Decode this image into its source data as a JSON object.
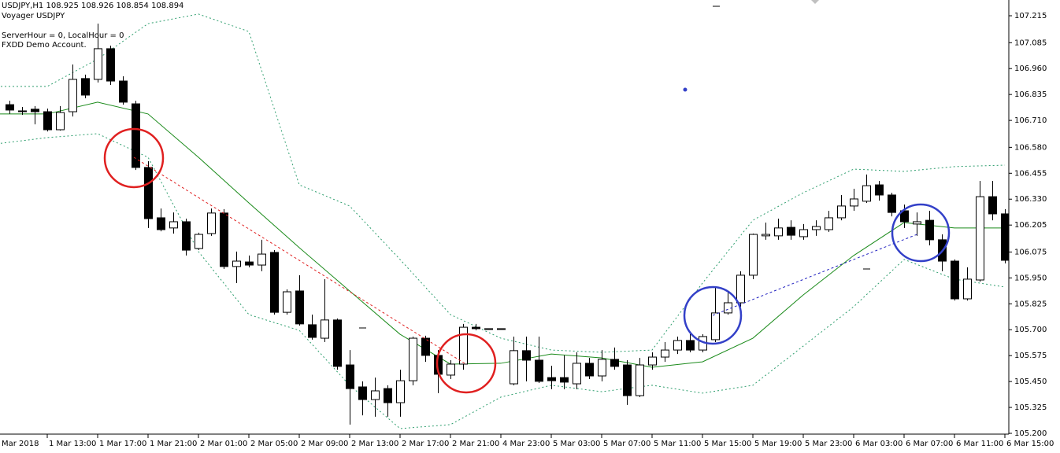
{
  "chart_data": {
    "type": "candlestick",
    "annotations": [
      "USDJPY,H1  108.925 108.926 108.854 108.894",
      "Voyager USDJPY",
      "ServerHour = 0, LocalHour = 0",
      "FXDD Demo Account."
    ],
    "categories": [
      "Mar 2018",
      null,
      null,
      null,
      "1 Mar 13:00",
      null,
      null,
      null,
      "1 Mar 17:00",
      null,
      null,
      null,
      "1 Mar 21:00",
      null,
      null,
      null,
      "2 Mar 01:00",
      null,
      null,
      null,
      "2 Mar 05:00",
      null,
      null,
      null,
      "2 Mar 09:00",
      null,
      null,
      null,
      "2 Mar 13:00",
      null,
      null,
      null,
      "2 Mar 17:00",
      null,
      null,
      null,
      "2 Mar 21:00",
      null,
      null,
      null,
      "4 Mar 23:00",
      null,
      null,
      null,
      "5 Mar 03:00",
      null,
      null,
      null,
      "5 Mar 07:00",
      null,
      null,
      null,
      "5 Mar 11:00",
      null,
      null,
      null,
      "5 Mar 15:00",
      null,
      null,
      null,
      "5 Mar 19:00",
      null,
      null,
      null,
      "5 Mar 23:00",
      null,
      null,
      null,
      "6 Mar 03:00",
      null,
      null,
      null,
      "6 Mar 07:00",
      null,
      null,
      null,
      "6 Mar 11:00",
      null,
      null,
      null,
      "6 Mar 15:00"
    ],
    "open": [
      null,
      106.786,
      106.756,
      106.764,
      106.752,
      106.665,
      106.752,
      106.912,
      106.908,
      107.056,
      106.9,
      106.79,
      106.483,
      106.24,
      106.191,
      106.221,
      106.092,
      106.164,
      106.263,
      106.005,
      106.027,
      106.012,
      106.073,
      105.784,
      105.887,
      105.724,
      105.659,
      105.747,
      105.53,
      105.424,
      105.363,
      105.416,
      105.348,
      105.454,
      105.659,
      105.576,
      105.481,
      105.534,
      105.712,
      105.705,
      105.705,
      105.439,
      105.599,
      105.553,
      105.469,
      105.469,
      105.439,
      105.538,
      105.477,
      105.557,
      105.53,
      105.382,
      105.53,
      105.568,
      105.602,
      105.648,
      105.602,
      105.652,
      105.781,
      105.83,
      105.963,
      106.153,
      106.153,
      106.194,
      106.149,
      106.183,
      106.183,
      106.24,
      106.297,
      106.32,
      106.399,
      106.35,
      106.274,
      106.21,
      106.228,
      106.134,
      106.031,
      105.849,
      105.94,
      106.342,
      106.259
    ],
    "high": [
      null,
      106.805,
      106.775,
      106.779,
      106.767,
      106.779,
      106.98,
      106.931,
      107.177,
      107.071,
      106.923,
      106.805,
      106.513,
      106.285,
      106.266,
      106.236,
      106.168,
      106.285,
      106.282,
      106.077,
      106.058,
      106.134,
      106.084,
      105.895,
      105.963,
      105.773,
      105.944,
      105.754,
      105.602,
      105.451,
      105.469,
      105.432,
      105.507,
      105.667,
      105.671,
      105.602,
      105.553,
      105.728,
      105.728,
      105.705,
      105.705,
      105.667,
      105.667,
      105.667,
      105.526,
      105.576,
      105.591,
      105.564,
      105.602,
      105.614,
      105.553,
      105.564,
      105.591,
      105.64,
      105.667,
      105.678,
      105.678,
      105.902,
      105.879,
      105.982,
      106.164,
      106.217,
      106.236,
      106.228,
      106.21,
      106.228,
      106.274,
      106.35,
      106.38,
      106.449,
      106.418,
      106.361,
      106.304,
      106.266,
      106.274,
      106.16,
      106.039,
      106.001,
      106.418,
      106.418,
      106.282
    ],
    "low": [
      null,
      106.741,
      106.737,
      106.691,
      106.657,
      106.661,
      106.729,
      106.817,
      106.893,
      106.881,
      106.786,
      106.471,
      106.191,
      106.175,
      106.164,
      106.058,
      106.084,
      106.153,
      105.993,
      105.925,
      106.001,
      105.982,
      105.773,
      105.773,
      105.72,
      105.652,
      105.64,
      105.507,
      105.242,
      105.287,
      105.28,
      105.28,
      105.28,
      105.432,
      105.545,
      105.394,
      105.462,
      105.507,
      105.697,
      105.705,
      105.705,
      105.432,
      105.451,
      105.443,
      105.413,
      105.413,
      105.413,
      105.462,
      105.451,
      105.507,
      105.337,
      105.375,
      105.507,
      105.545,
      105.583,
      105.591,
      105.591,
      105.64,
      105.773,
      105.811,
      105.944,
      106.134,
      106.134,
      106.134,
      106.134,
      106.153,
      106.172,
      106.228,
      106.274,
      106.312,
      106.323,
      106.247,
      106.191,
      106.153,
      106.107,
      105.982,
      105.841,
      105.841,
      105.932,
      106.228,
      106.02
    ],
    "close": [
      null,
      106.76,
      106.756,
      106.752,
      106.665,
      106.748,
      106.908,
      106.832,
      107.056,
      106.9,
      106.798,
      106.483,
      106.236,
      106.183,
      106.221,
      106.084,
      106.16,
      106.263,
      106.005,
      106.031,
      106.012,
      106.065,
      105.784,
      105.883,
      105.728,
      105.663,
      105.747,
      105.523,
      105.416,
      105.363,
      105.405,
      105.348,
      105.454,
      105.659,
      105.576,
      105.485,
      105.534,
      105.712,
      105.705,
      105.705,
      105.705,
      105.599,
      105.553,
      105.451,
      105.454,
      105.447,
      105.538,
      105.477,
      105.557,
      105.523,
      105.382,
      105.53,
      105.568,
      105.602,
      105.648,
      105.602,
      105.667,
      105.781,
      105.83,
      105.963,
      106.16,
      106.16,
      106.191,
      106.156,
      106.183,
      106.198,
      106.24,
      106.297,
      106.331,
      106.395,
      106.35,
      106.266,
      106.221,
      106.221,
      106.134,
      106.031,
      105.849,
      105.944,
      106.342,
      106.259,
      106.035
    ],
    "bull_color": "#ffffff",
    "bear_color": "#000000",
    "overlays": [
      {
        "color": "#1a8a1a",
        "dash": false,
        "x": [
          0,
          4,
          8,
          12,
          16,
          20,
          24,
          28,
          32,
          36,
          40,
          44,
          48,
          52,
          56,
          60,
          64,
          68,
          72,
          76,
          80
        ],
        "values": [
          106.741,
          106.741,
          106.798,
          106.741,
          106.532,
          106.312,
          106.096,
          105.887,
          105.678,
          105.534,
          105.538,
          105.583,
          105.564,
          105.519,
          105.545,
          105.659,
          105.868,
          106.058,
          106.217,
          106.191,
          106.191
        ]
      },
      {
        "color": "#2e9e6e",
        "dash": true,
        "x": [
          0,
          4,
          8,
          12,
          16,
          20,
          24,
          28,
          32,
          36,
          40,
          44,
          48,
          52,
          56,
          60,
          64,
          68,
          72,
          76,
          80
        ],
        "values": [
          106.874,
          106.874,
          107.006,
          107.177,
          107.223,
          107.139,
          106.399,
          106.297,
          106.039,
          105.773,
          105.659,
          105.602,
          105.591,
          105.602,
          105.925,
          106.228,
          106.361,
          106.475,
          106.464,
          106.487,
          106.494
        ]
      },
      {
        "color": "#2e9e6e",
        "dash": true,
        "x": [
          0,
          4,
          8,
          12,
          16,
          20,
          24,
          28,
          32,
          36,
          40,
          44,
          48,
          52,
          56,
          60,
          64,
          68,
          72,
          76,
          80
        ],
        "values": [
          106.597,
          106.627,
          106.646,
          106.532,
          106.077,
          105.773,
          105.697,
          105.432,
          105.223,
          105.242,
          105.375,
          105.432,
          105.401,
          105.432,
          105.394,
          105.432,
          105.621,
          105.811,
          106.039,
          105.944,
          105.906
        ]
      }
    ],
    "ylim": [
      105.2,
      107.291
    ],
    "yticks": [
      107.215,
      107.085,
      {
        "value": 106.96,
        "label": "106.960"
      },
      106.835,
      {
        "value": 106.71,
        "label": "106.710"
      },
      {
        "value": 106.58,
        "label": "106.580"
      },
      106.455,
      {
        "value": 106.33,
        "label": "106.330"
      },
      106.205,
      106.075,
      {
        "value": 105.95,
        "label": "105.950"
      },
      105.825,
      {
        "value": 105.7,
        "label": "105.700"
      },
      105.575,
      {
        "value": 105.45,
        "label": "105.450"
      },
      105.325,
      {
        "value": 105.2,
        "label": "105.200"
      }
    ]
  }
}
